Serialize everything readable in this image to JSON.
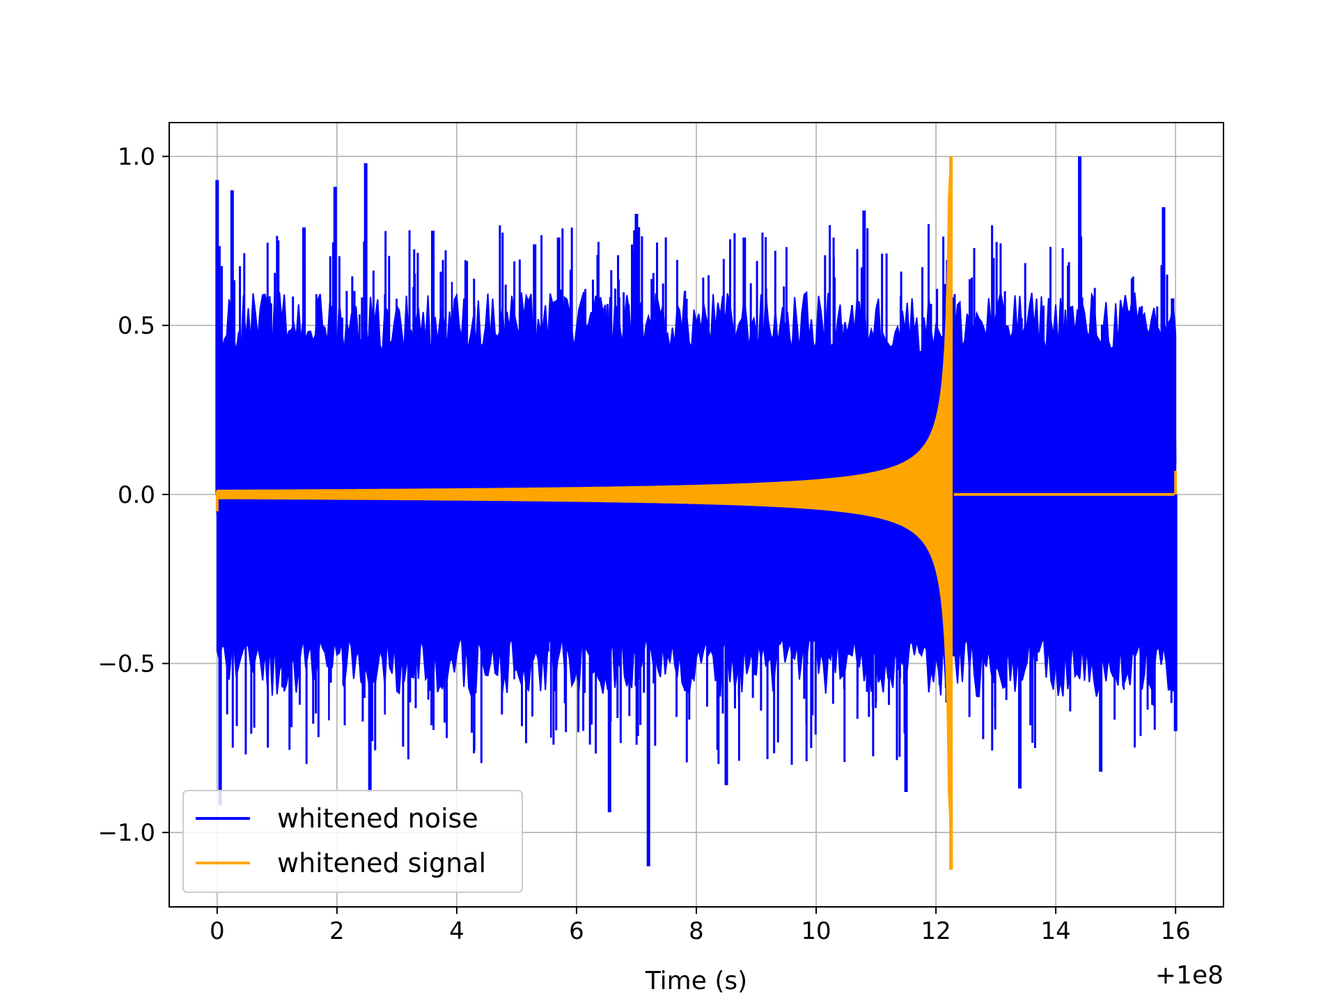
{
  "chart_data": {
    "type": "line",
    "title": "",
    "xlabel": "Time (s)",
    "ylabel": "",
    "x_offset_label": "+1e8",
    "xlim": [
      -0.8,
      16.8
    ],
    "ylim": [
      -1.22,
      1.1
    ],
    "x_ticks": [
      0,
      2,
      4,
      6,
      8,
      10,
      12,
      14,
      16
    ],
    "x_tick_labels": [
      "0",
      "2",
      "4",
      "6",
      "8",
      "10",
      "12",
      "14",
      "16"
    ],
    "y_ticks": [
      -1.0,
      -0.5,
      0.0,
      0.5,
      1.0
    ],
    "y_tick_labels": [
      "−1.0",
      "−0.5",
      "0.0",
      "0.5",
      "1.0"
    ],
    "grid": true,
    "legend": "lower-left",
    "series": [
      {
        "name": "whitened noise",
        "color": "#0000ff",
        "x_range": [
          0,
          16
        ],
        "typical_amplitude": 0.6,
        "spikes": [
          {
            "x": 0.0,
            "y": 0.93
          },
          {
            "x": 0.05,
            "y": -0.92
          },
          {
            "x": 0.25,
            "y": 0.9
          },
          {
            "x": 1.45,
            "y": 0.79
          },
          {
            "x": 1.97,
            "y": 0.91
          },
          {
            "x": 2.48,
            "y": 0.98
          },
          {
            "x": 2.55,
            "y": -0.88
          },
          {
            "x": 3.6,
            "y": 0.78
          },
          {
            "x": 5.3,
            "y": 0.74
          },
          {
            "x": 5.7,
            "y": 0.76
          },
          {
            "x": 6.55,
            "y": -0.94
          },
          {
            "x": 7.0,
            "y": 0.83
          },
          {
            "x": 7.2,
            "y": -1.1
          },
          {
            "x": 8.5,
            "y": -0.86
          },
          {
            "x": 8.8,
            "y": 0.76
          },
          {
            "x": 10.8,
            "y": 0.84
          },
          {
            "x": 11.5,
            "y": -0.88
          },
          {
            "x": 13.4,
            "y": -0.87
          },
          {
            "x": 14.4,
            "y": 1.0
          },
          {
            "x": 14.75,
            "y": -0.82
          },
          {
            "x": 15.8,
            "y": 0.85
          },
          {
            "x": 15.95,
            "y": 0.58
          },
          {
            "x": 16.0,
            "y": -0.7
          }
        ]
      },
      {
        "name": "whitened signal",
        "color": "#ffa500",
        "x_range": [
          0,
          16
        ],
        "merger_time": 12.25,
        "peak_max": 1.0,
        "peak_min": -1.11,
        "early_amplitude": 0.01,
        "post_merger_value": 0.0,
        "end_value": 0.07
      }
    ]
  }
}
